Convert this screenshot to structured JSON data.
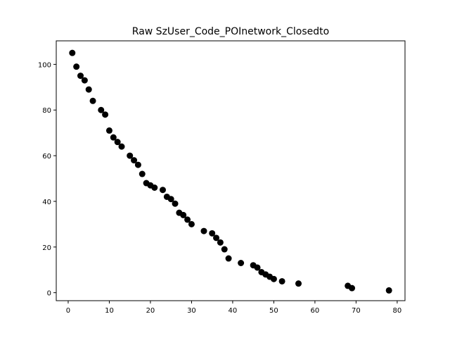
{
  "chart_data": {
    "type": "scatter",
    "title": "Raw SzUser_Code_POInetwork_Closedto",
    "xlabel": "",
    "ylabel": "",
    "xlim": [
      -2.9,
      81.9
    ],
    "ylim": [
      -3.5,
      110.3
    ],
    "xticks": [
      0,
      10,
      20,
      30,
      40,
      50,
      60,
      70,
      80
    ],
    "yticks": [
      0,
      20,
      40,
      60,
      80,
      100
    ],
    "grid": false,
    "marker_color": "#000000",
    "points": [
      {
        "x": 1,
        "y": 105
      },
      {
        "x": 2,
        "y": 99
      },
      {
        "x": 3,
        "y": 95
      },
      {
        "x": 4,
        "y": 93
      },
      {
        "x": 5,
        "y": 89
      },
      {
        "x": 6,
        "y": 84
      },
      {
        "x": 8,
        "y": 80
      },
      {
        "x": 9,
        "y": 78
      },
      {
        "x": 10,
        "y": 71
      },
      {
        "x": 11,
        "y": 68
      },
      {
        "x": 12,
        "y": 66
      },
      {
        "x": 13,
        "y": 64
      },
      {
        "x": 15,
        "y": 60
      },
      {
        "x": 16,
        "y": 58
      },
      {
        "x": 17,
        "y": 56
      },
      {
        "x": 18,
        "y": 52
      },
      {
        "x": 19,
        "y": 48
      },
      {
        "x": 20,
        "y": 47
      },
      {
        "x": 21,
        "y": 46
      },
      {
        "x": 23,
        "y": 45
      },
      {
        "x": 24,
        "y": 42
      },
      {
        "x": 25,
        "y": 41
      },
      {
        "x": 26,
        "y": 39
      },
      {
        "x": 27,
        "y": 35
      },
      {
        "x": 28,
        "y": 34
      },
      {
        "x": 29,
        "y": 32
      },
      {
        "x": 30,
        "y": 30
      },
      {
        "x": 33,
        "y": 27
      },
      {
        "x": 35,
        "y": 26
      },
      {
        "x": 36,
        "y": 24
      },
      {
        "x": 37,
        "y": 22
      },
      {
        "x": 38,
        "y": 19
      },
      {
        "x": 39,
        "y": 15
      },
      {
        "x": 42,
        "y": 13
      },
      {
        "x": 45,
        "y": 12
      },
      {
        "x": 46,
        "y": 11
      },
      {
        "x": 47,
        "y": 9
      },
      {
        "x": 48,
        "y": 8
      },
      {
        "x": 49,
        "y": 7
      },
      {
        "x": 50,
        "y": 6
      },
      {
        "x": 52,
        "y": 5
      },
      {
        "x": 56,
        "y": 4
      },
      {
        "x": 68,
        "y": 3
      },
      {
        "x": 69,
        "y": 2
      },
      {
        "x": 78,
        "y": 1
      }
    ]
  }
}
